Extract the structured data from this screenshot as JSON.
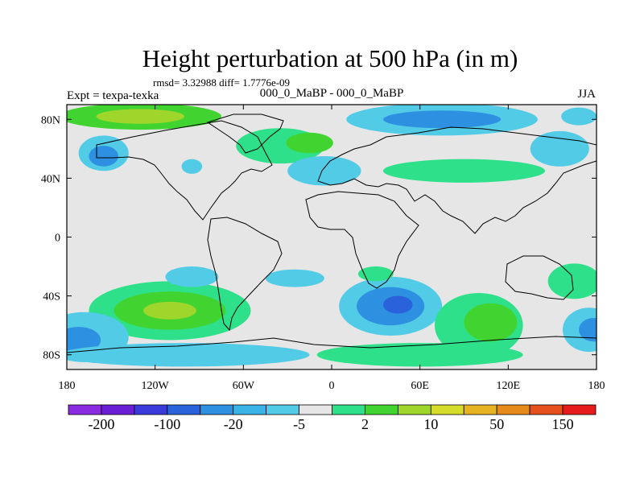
{
  "title": "Height perturbation at 500 hPa (in m)",
  "stats": "rmsd= 3.32988 diff= 1.7776e-09",
  "experiment": "Expt = texpa-texka",
  "case": "000_0_MaBP - 000_0_MaBP",
  "season": "JJA",
  "map": {
    "lon_range": [
      -180,
      180
    ],
    "lat_range": [
      -90,
      90
    ],
    "lat_ticks": [
      {
        "value": 80,
        "label": "80N"
      },
      {
        "value": 40,
        "label": "40N"
      },
      {
        "value": 0,
        "label": "0"
      },
      {
        "value": -40,
        "label": "40S"
      },
      {
        "value": -80,
        "label": "80S"
      }
    ],
    "lon_ticks": [
      {
        "value": -180,
        "label": "180"
      },
      {
        "value": -120,
        "label": "120W"
      },
      {
        "value": -60,
        "label": "60W"
      },
      {
        "value": 0,
        "label": "0"
      },
      {
        "value": 60,
        "label": "60E"
      },
      {
        "value": 120,
        "label": "120E"
      },
      {
        "value": 180,
        "label": "180"
      }
    ],
    "background_color": "#e6e6e6",
    "anomalies": [
      {
        "lon": -130,
        "lat": 82,
        "rx": 55,
        "ry": 9,
        "level": 10
      },
      {
        "lon": -130,
        "lat": 82,
        "rx": 30,
        "ry": 5,
        "level": 20
      },
      {
        "lon": -155,
        "lat": 57,
        "rx": 17,
        "ry": 12,
        "level": -5
      },
      {
        "lon": -155,
        "lat": 55,
        "rx": 10,
        "ry": 7,
        "level": -20
      },
      {
        "lon": -95,
        "lat": 48,
        "rx": 7,
        "ry": 5,
        "level": -5
      },
      {
        "lon": -35,
        "lat": 62,
        "rx": 30,
        "ry": 12,
        "level": 2
      },
      {
        "lon": -15,
        "lat": 64,
        "rx": 16,
        "ry": 7,
        "level": 10
      },
      {
        "lon": -5,
        "lat": 45,
        "rx": 25,
        "ry": 10,
        "level": -5
      },
      {
        "lon": 75,
        "lat": 80,
        "rx": 65,
        "ry": 11,
        "level": -5
      },
      {
        "lon": 75,
        "lat": 80,
        "rx": 40,
        "ry": 6,
        "level": -20
      },
      {
        "lon": 90,
        "lat": 45,
        "rx": 55,
        "ry": 8,
        "level": 2
      },
      {
        "lon": 155,
        "lat": 60,
        "rx": 20,
        "ry": 12,
        "level": -5
      },
      {
        "lon": 168,
        "lat": 82,
        "rx": 12,
        "ry": 6,
        "level": -5
      },
      {
        "lon": -110,
        "lat": -50,
        "rx": 55,
        "ry": 20,
        "level": 2
      },
      {
        "lon": -110,
        "lat": -50,
        "rx": 38,
        "ry": 13,
        "level": 10
      },
      {
        "lon": -110,
        "lat": -50,
        "rx": 18,
        "ry": 6,
        "level": 20
      },
      {
        "lon": -95,
        "lat": -27,
        "rx": 18,
        "ry": 7,
        "level": -5
      },
      {
        "lon": -25,
        "lat": -28,
        "rx": 20,
        "ry": 6,
        "level": -5
      },
      {
        "lon": -168,
        "lat": -68,
        "rx": 30,
        "ry": 17,
        "level": -5
      },
      {
        "lon": -172,
        "lat": -70,
        "rx": 15,
        "ry": 9,
        "level": -20
      },
      {
        "lon": -100,
        "lat": -80,
        "rx": 85,
        "ry": 8,
        "level": -5
      },
      {
        "lon": 40,
        "lat": -47,
        "rx": 35,
        "ry": 20,
        "level": -5
      },
      {
        "lon": 40,
        "lat": -47,
        "rx": 23,
        "ry": 13,
        "level": -20
      },
      {
        "lon": 45,
        "lat": -46,
        "rx": 10,
        "ry": 6,
        "level": -100
      },
      {
        "lon": 30,
        "lat": -25,
        "rx": 12,
        "ry": 5,
        "level": 2
      },
      {
        "lon": 100,
        "lat": -60,
        "rx": 30,
        "ry": 22,
        "level": 2
      },
      {
        "lon": 108,
        "lat": -58,
        "rx": 18,
        "ry": 13,
        "level": 10
      },
      {
        "lon": 60,
        "lat": -80,
        "rx": 70,
        "ry": 8,
        "level": 2
      },
      {
        "lon": 165,
        "lat": -30,
        "rx": 18,
        "ry": 12,
        "level": 2
      },
      {
        "lon": 175,
        "lat": -63,
        "rx": 18,
        "ry": 15,
        "level": -5
      },
      {
        "lon": 178,
        "lat": -63,
        "rx": 10,
        "ry": 8,
        "level": -20
      }
    ]
  },
  "colorbar": {
    "colors": [
      "#8a2be2",
      "#6a1fd6",
      "#3b3bdc",
      "#2a62dc",
      "#2e90e0",
      "#3ab3e6",
      "#52cbe6",
      "#e6e6e6",
      "#2fe08a",
      "#41d431",
      "#9fd62c",
      "#d6dc2a",
      "#e6b422",
      "#e68a1c",
      "#e6501c",
      "#e61c1c"
    ],
    "labels": [
      "-200",
      "-100",
      "-20",
      "-5",
      "2",
      "10",
      "50",
      "150"
    ]
  }
}
